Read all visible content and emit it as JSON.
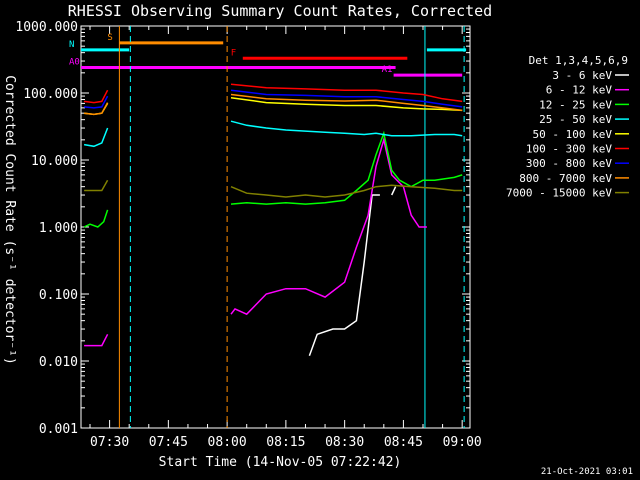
{
  "chart_data": {
    "type": "line",
    "title": "RHESSI Observing Summary Count Rates, Corrected",
    "xlabel": "Start Time (14-Nov-05 07:22:42)",
    "ylabel": "Corrected Count Rate (s⁻¹ detector⁻¹)",
    "y_scale": "log",
    "ylim": [
      0.001,
      1000
    ],
    "xlim_min": [
      442.7,
      542
    ],
    "x_tick_labels": [
      "07:30",
      "07:45",
      "08:00",
      "08:15",
      "08:30",
      "08:45",
      "09:00"
    ],
    "x_tick_min": [
      450,
      465,
      480,
      495,
      510,
      525,
      540
    ],
    "y_tick_labels": [
      "0.001",
      "0.010",
      "0.100",
      "1.000",
      "10.000",
      "100.000",
      "1000.000"
    ],
    "y_tick_values": [
      0.001,
      0.01,
      0.1,
      1,
      10,
      100,
      1000
    ],
    "legend_title": "Det 1,3,4,5,6,9",
    "legend_placement": "right",
    "footer": "21-Oct-2021 03:01",
    "series": [
      {
        "name": "3 - 6 keV",
        "color": "#ffffff",
        "segments": [
          [
            [
              501,
              0.012
            ],
            [
              503,
              0.025
            ],
            [
              507,
              0.03
            ],
            [
              510,
              0.03
            ],
            [
              513,
              0.04
            ],
            [
              515,
              0.3
            ],
            [
              517,
              3
            ],
            [
              518,
              3
            ],
            [
              519,
              3
            ]
          ],
          [
            [
              522,
              3
            ],
            [
              523,
              4
            ]
          ]
        ]
      },
      {
        "name": "6 - 12 keV",
        "color": "#ff00ff",
        "segments": [
          [
            [
              443.5,
              0.017
            ],
            [
              447,
              0.017
            ],
            [
              448,
              0.017
            ],
            [
              449.5,
              0.025
            ]
          ],
          [
            [
              481,
              0.05
            ],
            [
              482,
              0.06
            ],
            [
              485,
              0.05
            ],
            [
              490,
              0.1
            ],
            [
              495,
              0.12
            ],
            [
              500,
              0.12
            ],
            [
              505,
              0.09
            ],
            [
              510,
              0.15
            ],
            [
              513,
              0.5
            ],
            [
              516,
              1.5
            ],
            [
              518,
              8
            ],
            [
              520,
              20
            ],
            [
              522,
              6
            ],
            [
              525,
              4
            ],
            [
              527,
              1.5
            ],
            [
              529,
              1
            ],
            [
              531,
              1
            ]
          ]
        ]
      },
      {
        "name": "12 - 25 keV",
        "color": "#00ff00",
        "segments": [
          [
            [
              443.5,
              1.0
            ],
            [
              445,
              1.1
            ],
            [
              447,
              1.0
            ],
            [
              448.5,
              1.2
            ],
            [
              449.5,
              1.8
            ]
          ],
          [
            [
              481,
              2.2
            ],
            [
              485,
              2.3
            ],
            [
              490,
              2.2
            ],
            [
              495,
              2.3
            ],
            [
              500,
              2.2
            ],
            [
              505,
              2.3
            ],
            [
              510,
              2.5
            ],
            [
              513,
              3.5
            ],
            [
              516,
              5
            ],
            [
              518,
              12
            ],
            [
              520,
              25
            ],
            [
              522,
              7
            ],
            [
              524,
              5
            ],
            [
              527,
              4
            ],
            [
              530,
              5
            ],
            [
              533,
              5
            ],
            [
              538,
              5.5
            ],
            [
              540,
              6
            ]
          ]
        ]
      },
      {
        "name": "25 - 50 keV",
        "color": "#00ffff",
        "segments": [
          [
            [
              443.5,
              17
            ],
            [
              446,
              16
            ],
            [
              448,
              18
            ],
            [
              449.5,
              30
            ]
          ],
          [
            [
              481,
              38
            ],
            [
              485,
              33
            ],
            [
              490,
              30
            ],
            [
              495,
              28
            ],
            [
              500,
              27
            ],
            [
              505,
              26
            ],
            [
              510,
              25
            ],
            [
              515,
              24
            ],
            [
              518,
              25
            ],
            [
              522,
              23
            ],
            [
              527,
              23
            ],
            [
              533,
              24
            ],
            [
              538,
              24
            ],
            [
              540,
              23
            ]
          ]
        ]
      },
      {
        "name": "50 - 100 keV",
        "color": "#ffff00",
        "segments": [
          [
            [
              443.5,
              50
            ],
            [
              446,
              48
            ],
            [
              448,
              50
            ],
            [
              449.5,
              70
            ]
          ],
          [
            [
              481,
              85
            ],
            [
              490,
              72
            ],
            [
              500,
              68
            ],
            [
              510,
              65
            ],
            [
              518,
              65
            ],
            [
              525,
              60
            ],
            [
              530,
              58
            ],
            [
              535,
              57
            ],
            [
              540,
              55
            ]
          ]
        ]
      },
      {
        "name": "100 - 300 keV",
        "color": "#ff0000",
        "segments": [
          [
            [
              443.5,
              75
            ],
            [
              446,
              72
            ],
            [
              448,
              75
            ],
            [
              449.5,
              110
            ]
          ],
          [
            [
              481,
              135
            ],
            [
              490,
              120
            ],
            [
              500,
              115
            ],
            [
              510,
              110
            ],
            [
              518,
              110
            ],
            [
              525,
              100
            ],
            [
              530,
              95
            ],
            [
              535,
              82
            ],
            [
              540,
              75
            ]
          ]
        ]
      },
      {
        "name": "300 - 800 keV",
        "color": "#0000ff",
        "segments": [
          [
            [
              443.5,
              62
            ],
            [
              446,
              60
            ],
            [
              448,
              62
            ],
            [
              449.5,
              90
            ]
          ],
          [
            [
              481,
              110
            ],
            [
              490,
              95
            ],
            [
              500,
              92
            ],
            [
              510,
              88
            ],
            [
              518,
              88
            ],
            [
              525,
              80
            ],
            [
              530,
              75
            ],
            [
              535,
              68
            ],
            [
              540,
              62
            ]
          ]
        ]
      },
      {
        "name": "800 - 7000 keV",
        "color": "#ff8c00",
        "segments": [
          [
            [
              443.5,
              50
            ],
            [
              446,
              48
            ],
            [
              448,
              50
            ],
            [
              449.5,
              72
            ]
          ],
          [
            [
              481,
              95
            ],
            [
              490,
              82
            ],
            [
              500,
              78
            ],
            [
              510,
              76
            ],
            [
              518,
              78
            ],
            [
              525,
              70
            ],
            [
              530,
              65
            ],
            [
              535,
              60
            ],
            [
              540,
              55
            ]
          ]
        ]
      },
      {
        "name": "7000 - 15000 keV",
        "color": "#808000",
        "segments": [
          [
            [
              443.5,
              3.5
            ],
            [
              446,
              3.5
            ],
            [
              448,
              3.5
            ],
            [
              449.5,
              5
            ]
          ],
          [
            [
              481,
              4
            ],
            [
              485,
              3.2
            ],
            [
              490,
              3
            ],
            [
              495,
              2.8
            ],
            [
              500,
              3
            ],
            [
              505,
              2.8
            ],
            [
              510,
              3
            ],
            [
              515,
              3.5
            ],
            [
              518,
              4
            ],
            [
              522,
              4.2
            ],
            [
              527,
              4
            ],
            [
              533,
              3.8
            ],
            [
              538,
              3.5
            ],
            [
              540,
              3.5
            ]
          ]
        ]
      }
    ],
    "annotation_bars": [
      {
        "label": "S",
        "color": "#ff8c00",
        "x_min": [
          452.5,
          479
        ],
        "y": 560
      },
      {
        "label": "N",
        "color": "#00ffff",
        "x_min": [
          442.7,
          455
        ],
        "y": 440
      },
      {
        "label": "F",
        "color": "#ff0000",
        "x_min": [
          484,
          526
        ],
        "y": 330
      },
      {
        "label": "A0",
        "color": "#ff00ff",
        "x_min": [
          442.7,
          523
        ],
        "y": 240
      },
      {
        "label": "A1",
        "color": "#ff00ff",
        "x_min": [
          522.5,
          540
        ],
        "y": 185
      },
      {
        "label": "",
        "color": "#00ffff",
        "x_min": [
          531,
          541
        ],
        "y": 440
      }
    ],
    "vertical_lines": [
      {
        "x_min": 452.5,
        "color": "#ff8c00",
        "style": "solid"
      },
      {
        "x_min": 455.3,
        "color": "#00ffff",
        "style": "dashed"
      },
      {
        "x_min": 480,
        "color": "#ff8c00",
        "style": "dashed"
      },
      {
        "x_min": 530.5,
        "color": "#00ffff",
        "style": "solid"
      },
      {
        "x_min": 540.5,
        "color": "#00ffff",
        "style": "dashed"
      }
    ]
  }
}
